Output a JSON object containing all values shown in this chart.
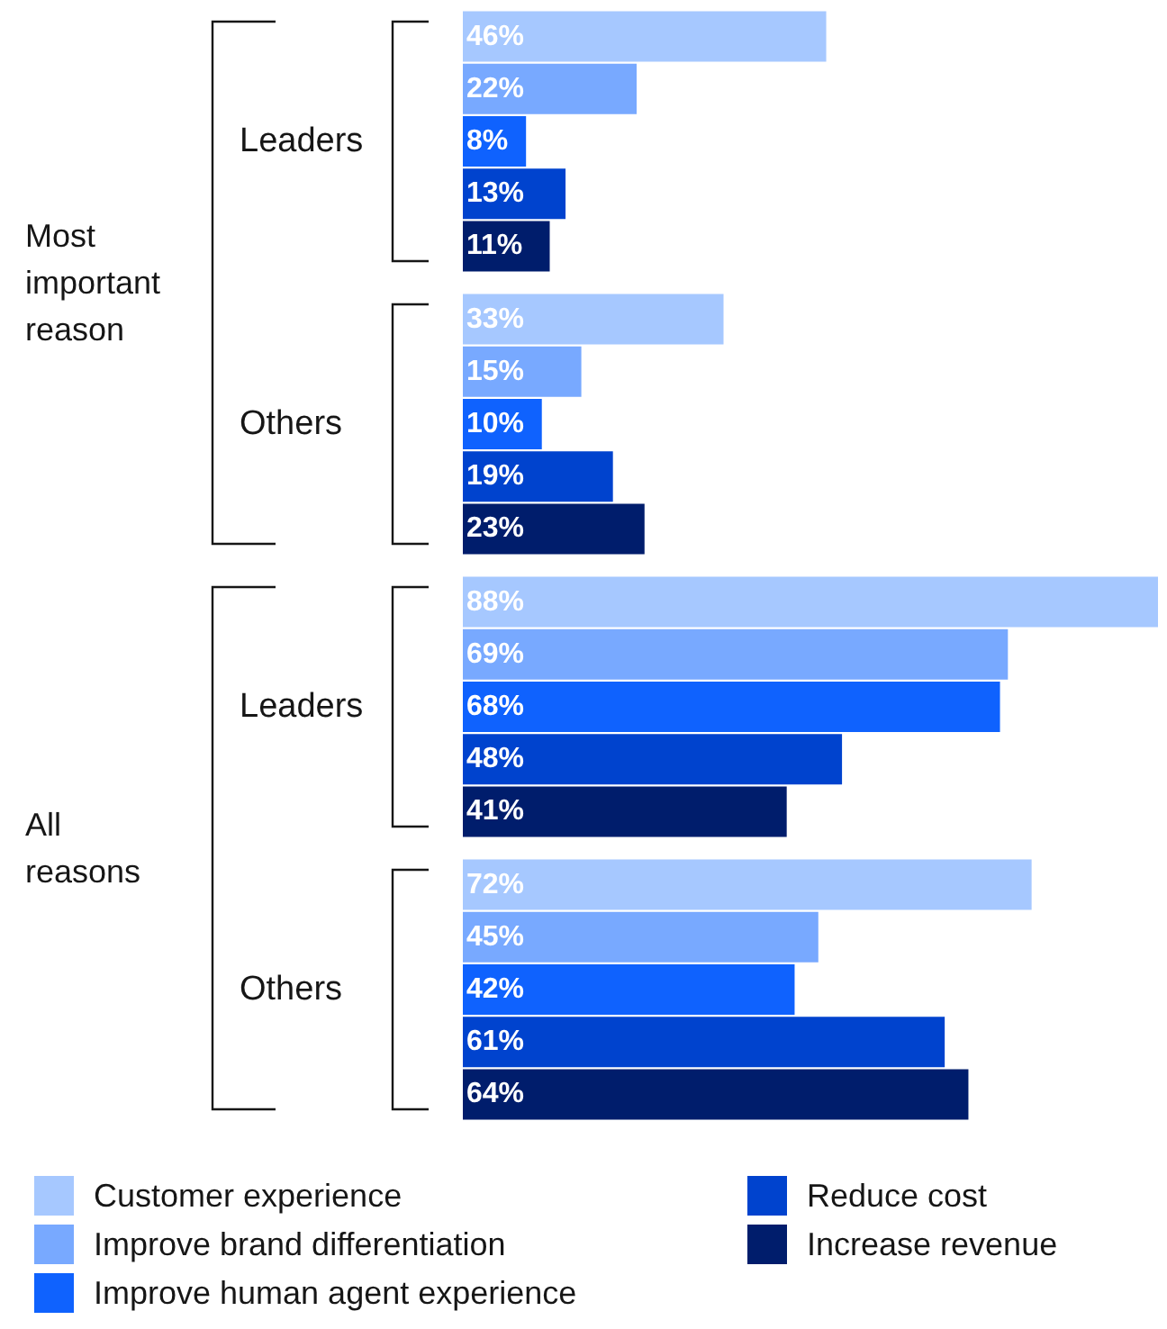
{
  "chart_data": {
    "type": "bar",
    "orientation": "horizontal",
    "categories": [
      "Leaders",
      "Others",
      "Leaders",
      "Others"
    ],
    "annotations": [
      "Most important reason",
      "All reasons"
    ],
    "legend": "bottom",
    "series": [
      {
        "name": "Customer experience",
        "color": "#a6c8ff",
        "values": [
          46,
          33,
          88,
          72
        ],
        "value_labels": [
          "46%",
          "33%",
          "88%",
          "72%"
        ]
      },
      {
        "name": "Improve brand differentiation",
        "color": "#78a9ff",
        "values": [
          22,
          15,
          69,
          45
        ],
        "value_labels": [
          "22%",
          "15%",
          "69%",
          "45%"
        ]
      },
      {
        "name": "Improve human agent experience",
        "color": "#0f62fe",
        "values": [
          8,
          10,
          68,
          42
        ],
        "value_labels": [
          "8%",
          "10%",
          "68%",
          "42%"
        ]
      },
      {
        "name": "Reduce cost",
        "color": "#0043ce",
        "values": [
          13,
          19,
          48,
          61
        ],
        "value_labels": [
          "13%",
          "19%",
          "48%",
          "61%"
        ]
      },
      {
        "name": "Increase revenue",
        "color": "#001d6c",
        "values": [
          11,
          23,
          41,
          64
        ],
        "value_labels": [
          "11%",
          "23%",
          "41%",
          "64%"
        ]
      }
    ]
  }
}
